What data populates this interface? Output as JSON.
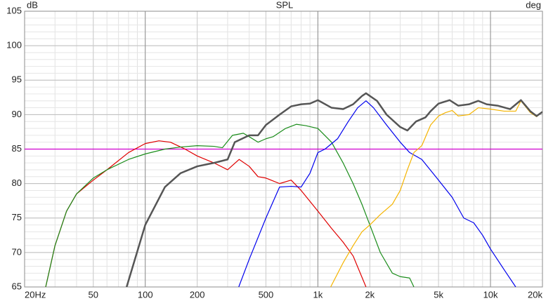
{
  "chart_data": {
    "type": "line",
    "title": "SPL",
    "ylabel": "dB",
    "y2label": "deg",
    "xscale": "log",
    "grid": true,
    "xlim": [
      20,
      20000
    ],
    "ylim": [
      65,
      105
    ],
    "xticks": [
      {
        "value": 20,
        "label": "20Hz"
      },
      50,
      100,
      200,
      500,
      {
        "value": 1000,
        "label": "1k"
      },
      {
        "value": 2000,
        "label": "2k"
      },
      {
        "value": 5000,
        "label": "5k"
      },
      {
        "value": 10000,
        "label": "10k"
      },
      {
        "value": 20000,
        "label": "20k"
      }
    ],
    "yticks": [
      65,
      70,
      75,
      80,
      85,
      90,
      95,
      100,
      105
    ],
    "series": [
      {
        "color": "#d000d0",
        "x": [
          20,
          20000
        ],
        "values": [
          85,
          85
        ]
      },
      {
        "color": "#e00000",
        "x": [
          26.5,
          30,
          35,
          40,
          50,
          60,
          80,
          100,
          120,
          140,
          170,
          200,
          250,
          300,
          350,
          400,
          450,
          500,
          600,
          700,
          800,
          1000,
          1200,
          1400,
          1600,
          1900
        ],
        "values": [
          65,
          71,
          76,
          78.5,
          80.5,
          82,
          84.5,
          85.8,
          86.2,
          86,
          85,
          84,
          83,
          82,
          83.5,
          82.5,
          81,
          80.8,
          80,
          80.5,
          79,
          76,
          73.5,
          71.5,
          69.5,
          65
        ]
      },
      {
        "color": "#1a8c1a",
        "x": [
          26.5,
          30,
          35,
          40,
          50,
          60,
          80,
          100,
          130,
          160,
          200,
          250,
          280,
          320,
          370,
          400,
          450,
          500,
          550,
          650,
          750,
          850,
          1000,
          1200,
          1400,
          1600,
          1800,
          2000,
          2300,
          2700,
          3000,
          3400,
          3600
        ],
        "values": [
          65,
          71,
          76,
          78.5,
          80.8,
          82,
          83.5,
          84.3,
          85,
          85.3,
          85.5,
          85.4,
          85.2,
          87,
          87.3,
          86.8,
          86,
          86.5,
          86.8,
          88,
          88.6,
          88.4,
          88,
          86,
          83,
          80,
          77,
          74,
          70,
          67,
          66.5,
          66.3,
          65
        ]
      },
      {
        "color": "#0000ee",
        "x": [
          348,
          400,
          500,
          600,
          700,
          800,
          900,
          1000,
          1100,
          1300,
          1500,
          1700,
          1900,
          2100,
          2500,
          3000,
          3400,
          4000,
          5000,
          6000,
          7000,
          8000,
          9000,
          10000,
          12000,
          14000
        ],
        "values": [
          65,
          69,
          75,
          79.5,
          79.6,
          79.5,
          81.5,
          84.5,
          85,
          86.5,
          89,
          91,
          92,
          91,
          88.5,
          86,
          84.5,
          83.5,
          80.5,
          78,
          75,
          74.3,
          72.5,
          70.5,
          67.5,
          65
        ]
      },
      {
        "color": "#f5b400",
        "x": [
          1186,
          1400,
          1600,
          1800,
          2000,
          2300,
          2700,
          3000,
          3300,
          3600,
          4000,
          4500,
          5000,
          5500,
          6000,
          6500,
          7500,
          8500,
          10000,
          12000,
          14000,
          15000,
          17000,
          18500,
          20000
        ],
        "values": [
          65,
          68.5,
          71,
          73,
          74,
          75.5,
          77,
          79,
          82,
          84.5,
          85.5,
          88.5,
          89.8,
          90.3,
          90.6,
          89.8,
          90,
          91,
          90.8,
          90.5,
          90.5,
          92,
          90.3,
          89.7,
          90.4
        ]
      },
      {
        "color": "#555555",
        "width": 2.5,
        "x": [
          78,
          100,
          130,
          160,
          200,
          250,
          300,
          330,
          400,
          450,
          500,
          600,
          700,
          800,
          900,
          1000,
          1200,
          1400,
          1600,
          1800,
          1900,
          2200,
          2500,
          3000,
          3300,
          3700,
          4200,
          4500,
          5000,
          5800,
          6500,
          7500,
          8500,
          9500,
          11000,
          13000,
          15000,
          17000,
          18500,
          20000
        ],
        "values": [
          65,
          74,
          79.5,
          81.5,
          82.5,
          83,
          83.5,
          86,
          87,
          87,
          88.5,
          90,
          91.2,
          91.5,
          91.6,
          92.1,
          91,
          90.8,
          91.5,
          92.7,
          93.1,
          92,
          90,
          88.2,
          87.7,
          89,
          89.6,
          90.5,
          91.6,
          92.1,
          91.3,
          91.5,
          92,
          91.5,
          91.3,
          90.8,
          92.1,
          90.5,
          89.8,
          90.4
        ]
      }
    ]
  }
}
